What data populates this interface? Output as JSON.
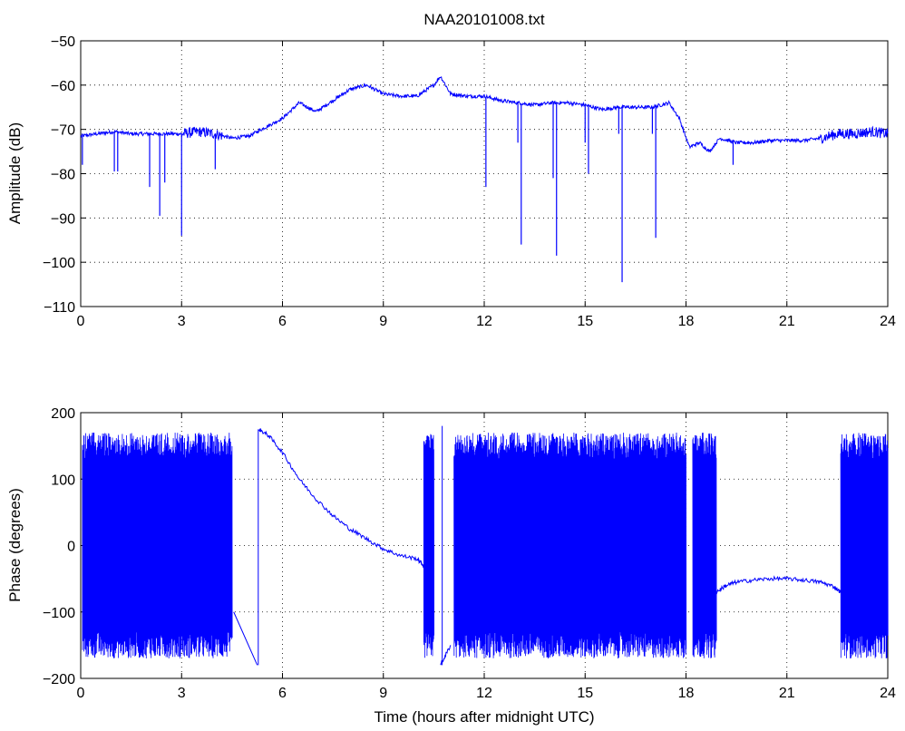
{
  "chart_data": [
    {
      "type": "line",
      "title": "NAA20101008.txt",
      "xlabel": "",
      "ylabel": "Amplitude (dB)",
      "xlim": [
        0,
        24
      ],
      "ylim": [
        -110,
        -50
      ],
      "xticks": [
        "0",
        "3",
        "6",
        "9",
        "12",
        "15",
        "18",
        "21",
        "24"
      ],
      "yticks": [
        "−110",
        "−100",
        "−90",
        "−80",
        "−70",
        "−60",
        "−50"
      ],
      "grid": true,
      "line_color": "#0000ff",
      "series": [
        {
          "x": [
            0,
            0.5,
            1,
            1.5,
            2,
            2.5,
            3,
            3.5,
            4,
            4.5,
            5,
            5.5,
            6,
            6.5,
            7,
            7.5,
            8,
            8.5,
            9,
            9.5,
            10,
            10.5,
            10.7,
            11,
            11.5,
            12,
            12.5,
            13,
            13.5,
            14,
            14.5,
            15,
            15.5,
            16,
            16.5,
            17,
            17.5,
            17.8,
            18.1,
            18.4,
            18.7,
            19,
            19.5,
            20,
            20.5,
            21,
            21.5,
            22,
            22.5,
            23,
            23.5,
            24
          ],
          "y": [
            -71.5,
            -71,
            -70.5,
            -71,
            -71,
            -71,
            -71,
            -70.5,
            -71,
            -72,
            -71.5,
            -69.5,
            -67.5,
            -64,
            -66,
            -63.5,
            -61,
            -60,
            -62,
            -62.5,
            -62.5,
            -60,
            -58,
            -62,
            -62.5,
            -62.5,
            -63.5,
            -64,
            -64.5,
            -64,
            -64,
            -64.5,
            -65.5,
            -65,
            -65,
            -65,
            -64,
            -67.5,
            -74,
            -73,
            -75,
            -72,
            -73,
            -73,
            -72.5,
            -72.5,
            -72.5,
            -72,
            -71,
            -71,
            -70.5,
            -71
          ],
          "dips": [
            {
              "x": 0.05,
              "y": -78
            },
            {
              "x": 1.0,
              "y": -79.5
            },
            {
              "x": 1.1,
              "y": -79.5
            },
            {
              "x": 2.05,
              "y": -83
            },
            {
              "x": 2.35,
              "y": -89.5
            },
            {
              "x": 2.5,
              "y": -82
            },
            {
              "x": 3.0,
              "y": -94
            },
            {
              "x": 4.0,
              "y": -79
            },
            {
              "x": 12.05,
              "y": -83
            },
            {
              "x": 13.0,
              "y": -73
            },
            {
              "x": 13.1,
              "y": -96
            },
            {
              "x": 14.05,
              "y": -81
            },
            {
              "x": 14.15,
              "y": -98.5
            },
            {
              "x": 15.0,
              "y": -73
            },
            {
              "x": 15.1,
              "y": -80
            },
            {
              "x": 16.0,
              "y": -71
            },
            {
              "x": 16.1,
              "y": -104.5
            },
            {
              "x": 17.0,
              "y": -71
            },
            {
              "x": 17.1,
              "y": -94.5
            },
            {
              "x": 19.4,
              "y": -78
            }
          ]
        }
      ]
    },
    {
      "type": "line",
      "title": "",
      "xlabel": "Time (hours after midnight UTC)",
      "ylabel": "Phase (degrees)",
      "xlim": [
        0,
        24
      ],
      "ylim": [
        -200,
        200
      ],
      "xticks": [
        "0",
        "3",
        "6",
        "9",
        "12",
        "15",
        "18",
        "21",
        "24"
      ],
      "yticks": [
        "−200",
        "−100",
        "0",
        "100",
        "200"
      ],
      "grid": true,
      "line_color": "#0000ff",
      "series": [
        {
          "wrapping_segments": [
            [
              0.05,
              4.5
            ],
            [
              10.2,
              10.5
            ],
            [
              11.1,
              18.0
            ],
            [
              18.2,
              18.9
            ],
            [
              22.6,
              24.0
            ]
          ],
          "smooth_x": [
            5.3,
            5.6,
            6.0,
            6.5,
            7.0,
            7.5,
            8.0,
            8.5,
            9.0,
            9.5,
            10.0,
            10.2
          ],
          "smooth_y": [
            175,
            165,
            140,
            100,
            70,
            45,
            25,
            10,
            -5,
            -15,
            -20,
            -30
          ],
          "recover_x": [
            10.7,
            11.0
          ],
          "recover_y": [
            -180,
            -150
          ],
          "flat_x": [
            18.9,
            19.2,
            19.5,
            20.0,
            20.5,
            21.0,
            21.5,
            22.0,
            22.4,
            22.6
          ],
          "flat_y": [
            -70,
            -60,
            -55,
            -52,
            -50,
            -50,
            -52,
            -55,
            -62,
            -70
          ]
        }
      ]
    }
  ]
}
